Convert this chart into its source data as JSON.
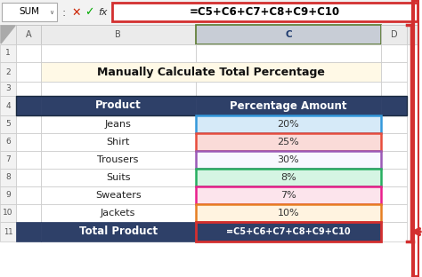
{
  "title": "Manually Calculate Total Percentage",
  "title_bg": "#FFF9E6",
  "header_bg": "#2E4068",
  "header_fg": "#FFFFFF",
  "col1_header": "Product",
  "col2_header": "Percentage Amount",
  "products": [
    "Jeans",
    "Shirt",
    "Trousers",
    "Suits",
    "Sweaters",
    "Jackets"
  ],
  "percentages": [
    "20%",
    "25%",
    "30%",
    "8%",
    "7%",
    "10%"
  ],
  "row_colors_pct": [
    "#D6EAF8",
    "#FADBD8",
    "#F8F8FF",
    "#D5F5E3",
    "#FCE4EC",
    "#FFF3E0"
  ],
  "row_borders": [
    "#3498DB",
    "#E74C3C",
    "#9B59B6",
    "#27AE60",
    "#E91E8C",
    "#E67E22"
  ],
  "total_label": "Total Product",
  "total_formula": "=C5+C6+C7+C8+C9+C10",
  "formula_bar_text": "=C5+C6+C7+C8+C9+C10",
  "name_box": "SUM",
  "col_a_label": "A",
  "col_b_label": "B",
  "col_c_label": "C",
  "col_d_label": "D",
  "formula_box_border": "#D32F2F",
  "arrow_color": "#D32F2F",
  "total_row_border": "#D32F2F",
  "outer_red_border": "#D32F2F",
  "toolbar_bg": "#F2F2F2",
  "colheader_bg": "#EBEBEB",
  "colheader_c_bg": "#C8CDD6",
  "grid_color": "#C8C8C8",
  "row_num_bg": "#F2F2F2",
  "arrow_indicator_color": "#D32F2F"
}
